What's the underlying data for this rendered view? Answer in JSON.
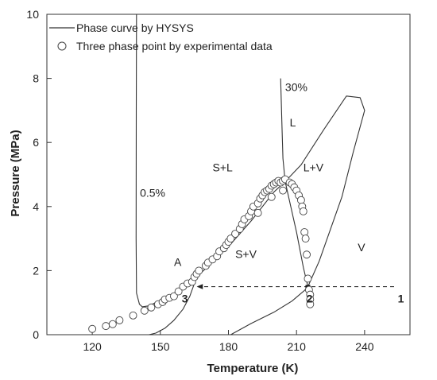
{
  "chart_data": {
    "type": "scatter",
    "xlabel": "Temperature (K)",
    "ylabel": "Pressure (MPa)",
    "xlim": [
      100,
      260
    ],
    "ylim": [
      0,
      10
    ],
    "x_ticks": [
      "120",
      "150",
      "180",
      "210",
      "240"
    ],
    "y_ticks": [
      "0",
      "2",
      "4",
      "6",
      "8",
      "10"
    ],
    "legend": [
      {
        "name": "Phase curve by HYSYS",
        "marker": "line"
      },
      {
        "name": "Three phase point  by experimental data",
        "marker": "circle"
      }
    ],
    "legend_position": "top-left",
    "grid": false,
    "colors": {
      "line": "#333333",
      "marker_edge": "#444444",
      "marker_fill": "#ffffff",
      "text": "#222222"
    },
    "series": [
      {
        "name": "Phase curve by HYSYS",
        "kind": "line",
        "segments": [
          [
            [
              139.5,
              10.0
            ],
            [
              139.4,
              7.0
            ],
            [
              139.3,
              3.0
            ],
            [
              139.5,
              1.3
            ],
            [
              140.8,
              0.95
            ],
            [
              142.0,
              0.87
            ],
            [
              145.0,
              0.9
            ],
            [
              152.0,
              1.15
            ],
            [
              160.0,
              1.45
            ],
            [
              166.0,
              1.8
            ],
            [
              172.0,
              2.2
            ],
            [
              180.0,
              2.75
            ],
            [
              190.0,
              3.55
            ],
            [
              200.0,
              4.45
            ],
            [
              205.0,
              4.78
            ]
          ],
          [
            [
              165.0,
              1.6
            ],
            [
              163.0,
              1.2
            ],
            [
              160.0,
              0.8
            ],
            [
              156.0,
              0.45
            ],
            [
              152.0,
              0.2
            ],
            [
              148.0,
              0.05
            ],
            [
              145.0,
              0.0
            ]
          ],
          [
            [
              203.0,
              8.0
            ],
            [
              203.6,
              6.5
            ],
            [
              204.0,
              5.5
            ],
            [
              205.0,
              4.78
            ],
            [
              210.0,
              3.2
            ],
            [
              213.0,
              2.1
            ],
            [
              215.0,
              1.5
            ],
            [
              220.0,
              2.3
            ],
            [
              230.0,
              4.3
            ],
            [
              235.0,
              5.7
            ],
            [
              240.0,
              7.0
            ],
            [
              238.0,
              7.4
            ],
            [
              232.0,
              7.45
            ],
            [
              222.0,
              6.4
            ],
            [
              212.0,
              5.3
            ],
            [
              205.0,
              4.78
            ]
          ],
          [
            [
              181.0,
              0.0
            ],
            [
              190.0,
              0.35
            ],
            [
              200.0,
              0.7
            ],
            [
              208.0,
              1.05
            ],
            [
              213.0,
              1.35
            ],
            [
              216.0,
              1.55
            ]
          ]
        ]
      },
      {
        "name": "Three phase point  by experimental data",
        "kind": "scatter",
        "points": [
          [
            120,
            0.18
          ],
          [
            126,
            0.27
          ],
          [
            129,
            0.33
          ],
          [
            132,
            0.45
          ],
          [
            138,
            0.6
          ],
          [
            143,
            0.75
          ],
          [
            146,
            0.85
          ],
          [
            149,
            0.95
          ],
          [
            151,
            1.02
          ],
          [
            152,
            1.1
          ],
          [
            154,
            1.15
          ],
          [
            156,
            1.2
          ],
          [
            158,
            1.35
          ],
          [
            160,
            1.5
          ],
          [
            162,
            1.6
          ],
          [
            164,
            1.65
          ],
          [
            165,
            1.8
          ],
          [
            166,
            1.9
          ],
          [
            167,
            2.0
          ],
          [
            170,
            2.15
          ],
          [
            171,
            2.25
          ],
          [
            173,
            2.35
          ],
          [
            175,
            2.45
          ],
          [
            176,
            2.6
          ],
          [
            178,
            2.7
          ],
          [
            179,
            2.8
          ],
          [
            180,
            2.9
          ],
          [
            181,
            3.0
          ],
          [
            183,
            3.15
          ],
          [
            185,
            3.3
          ],
          [
            186,
            3.45
          ],
          [
            187,
            3.6
          ],
          [
            189,
            3.7
          ],
          [
            190,
            3.85
          ],
          [
            191,
            4.0
          ],
          [
            193,
            4.1
          ],
          [
            194,
            4.25
          ],
          [
            195,
            4.35
          ],
          [
            196,
            4.45
          ],
          [
            197,
            4.5
          ],
          [
            198,
            4.55
          ],
          [
            199,
            4.65
          ],
          [
            200,
            4.7
          ],
          [
            201,
            4.75
          ],
          [
            202,
            4.8
          ],
          [
            203,
            4.75
          ],
          [
            204,
            4.8
          ],
          [
            205,
            4.85
          ],
          [
            207,
            4.75
          ],
          [
            208,
            4.7
          ],
          [
            209,
            4.6
          ],
          [
            210,
            4.5
          ],
          [
            211,
            4.35
          ],
          [
            212,
            4.2
          ],
          [
            212.5,
            4.0
          ],
          [
            213,
            3.85
          ],
          [
            213.5,
            3.2
          ],
          [
            214,
            3.0
          ],
          [
            214.5,
            2.5
          ],
          [
            215,
            1.75
          ],
          [
            215.5,
            1.4
          ],
          [
            216,
            1.25
          ],
          [
            216,
            1.1
          ],
          [
            216,
            0.95
          ],
          [
            193,
            3.8
          ],
          [
            199,
            4.3
          ],
          [
            204,
            4.5
          ]
        ]
      }
    ],
    "annotations": [
      {
        "text": "30%",
        "x": 205,
        "y": 7.6
      },
      {
        "text": "0.5%",
        "x": 141,
        "y": 4.3
      },
      {
        "text": "L",
        "x": 207,
        "y": 6.5
      },
      {
        "text": "S+L",
        "x": 173,
        "y": 5.1
      },
      {
        "text": "L+V",
        "x": 213,
        "y": 5.1
      },
      {
        "text": "S+V",
        "x": 183,
        "y": 2.4
      },
      {
        "text": "V",
        "x": 237,
        "y": 2.6
      },
      {
        "text": "A",
        "x": 156,
        "y": 2.15
      }
    ],
    "process_line": {
      "y": 1.5,
      "x_start": 253,
      "x_end": 165,
      "style": "dashed-arrow",
      "points": [
        {
          "label": "1",
          "x": 256
        },
        {
          "label": "2",
          "x": 215
        },
        {
          "label": "3",
          "x": 165
        }
      ],
      "marker_A": {
        "x": 164.5,
        "y": 1.75
      }
    }
  }
}
